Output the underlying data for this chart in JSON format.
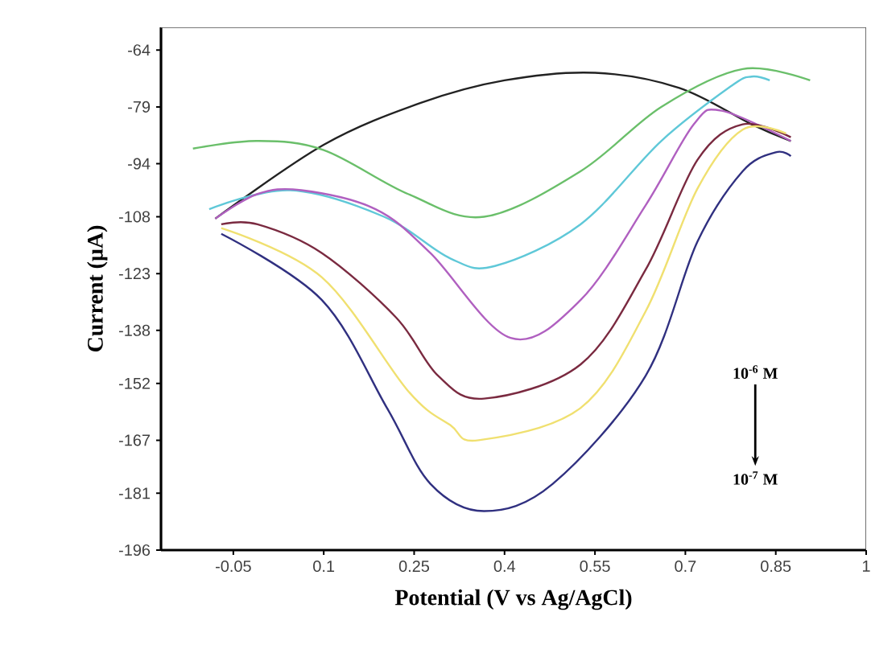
{
  "chart_data": {
    "type": "line",
    "xlabel": "Potential (V vs Ag/AgCl)",
    "ylabel": "Current (µA)",
    "xlim": [
      -0.17,
      1.0
    ],
    "ylim": [
      -196,
      -58
    ],
    "xticks": [
      -0.05,
      0.1,
      0.25,
      0.4,
      0.55,
      0.7,
      0.85,
      1
    ],
    "yticks": [
      -64,
      -79,
      -94,
      -108,
      -123,
      -138,
      -152,
      -167,
      -181,
      -196
    ],
    "grid": false,
    "marker": "none",
    "line_style": "solid",
    "annotations": [
      "10$^{-6}$ M",
      "10$^{-7}$ M"
    ],
    "series": [
      {
        "color": "#222222",
        "x": [
          -0.08,
          0.1,
          0.26,
          0.4,
          0.55,
          0.69,
          0.81,
          0.875
        ],
        "values": [
          -108.5,
          -89,
          -78,
          -72,
          -70,
          -74,
          -83.6,
          -88
        ]
      },
      {
        "color": "#6abf6a",
        "x": [
          -0.117,
          -0.01,
          0.1,
          0.24,
          0.366,
          0.526,
          0.66,
          0.795,
          0.907
        ],
        "values": [
          -90,
          -88,
          -90.4,
          -102,
          -108,
          -96,
          -79,
          -69,
          -72
        ]
      },
      {
        "color": "#5fc8d8",
        "x": [
          -0.09,
          0.044,
          0.2,
          0.31,
          0.384,
          0.526,
          0.66,
          0.776,
          0.81,
          0.84
        ],
        "values": [
          -106,
          -101,
          -108,
          -119,
          -121,
          -110,
          -88,
          -73.5,
          -71,
          -72
        ]
      },
      {
        "color": "#b060c0",
        "x": [
          -0.08,
          -0.01,
          0.063,
          0.186,
          0.277,
          0.41,
          0.526,
          0.634,
          0.714,
          0.76,
          0.875
        ],
        "values": [
          -108.5,
          -102,
          -101,
          -106,
          -117.6,
          -140,
          -130,
          -105,
          -83.6,
          -80,
          -88
        ]
      },
      {
        "color": "#7a2a40",
        "x": [
          -0.07,
          -0.01,
          0.097,
          0.22,
          0.29,
          0.366,
          0.526,
          0.634,
          0.72,
          0.795,
          0.875
        ],
        "values": [
          -110,
          -110,
          -117.6,
          -134.6,
          -150,
          -156,
          -147,
          -122,
          -93,
          -83.6,
          -87
        ]
      },
      {
        "color": "#f0e070",
        "x": [
          -0.07,
          0.097,
          0.24,
          0.31,
          0.357,
          0.526,
          0.634,
          0.72,
          0.795,
          0.867
        ],
        "values": [
          -111,
          -124,
          -154,
          -163,
          -167,
          -158.5,
          -133,
          -100.6,
          -85,
          -86
        ]
      },
      {
        "color": "#303080",
        "x": [
          -0.07,
          0.097,
          0.205,
          0.277,
          0.366,
          0.48,
          0.634,
          0.72,
          0.795,
          0.85,
          0.875
        ],
        "values": [
          -112.5,
          -130,
          -158.5,
          -178.5,
          -185.7,
          -178.5,
          -150,
          -114.6,
          -96,
          -91,
          -92
        ]
      }
    ]
  }
}
